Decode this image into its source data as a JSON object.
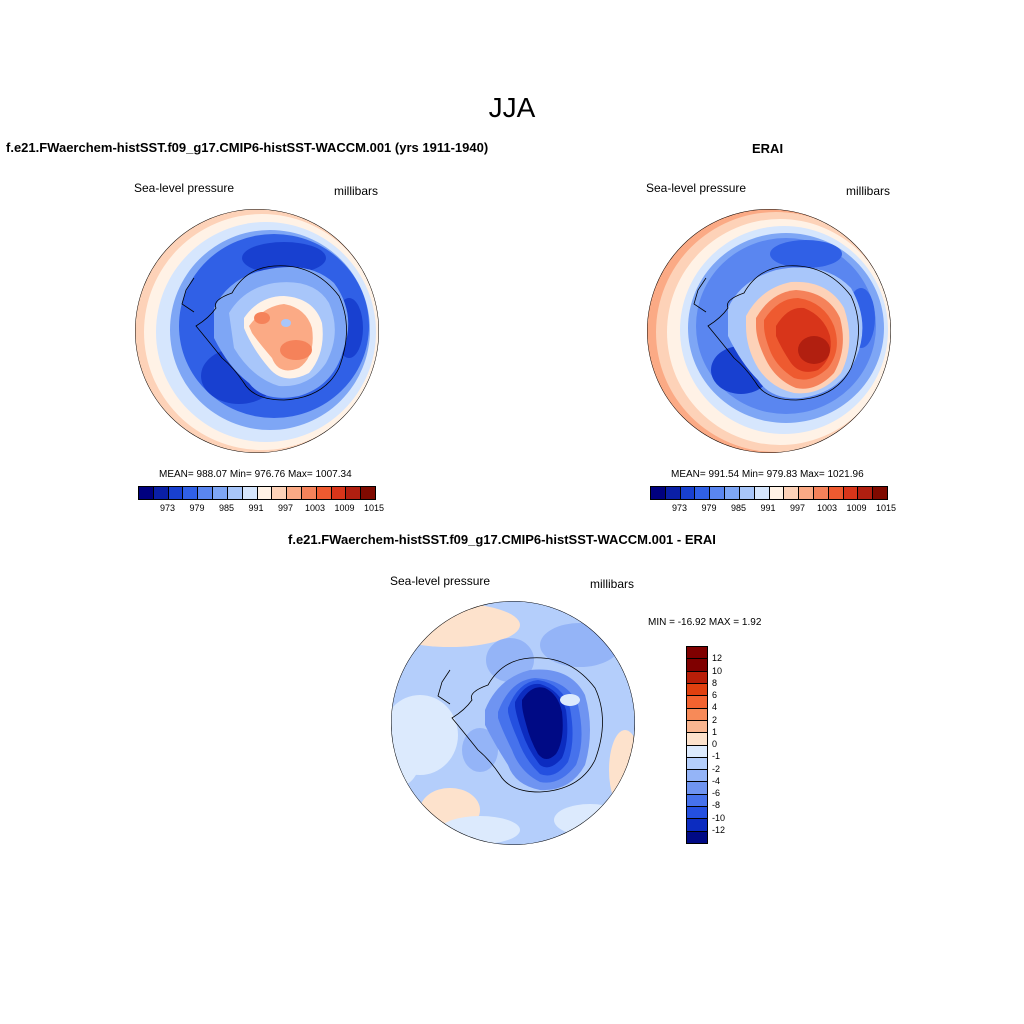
{
  "figure": {
    "season": "JJA",
    "colors": {
      "scale": [
        "#00007f",
        "#0a1fa6",
        "#1840d0",
        "#3060e6",
        "#5a86f0",
        "#7ea6f5",
        "#a8c6fa",
        "#d6e6fd",
        "#fff2e6",
        "#fdd2b8",
        "#fbaa85",
        "#f5825a",
        "#ee5a30",
        "#d8351a",
        "#b11f10",
        "#7f0a00"
      ]
    },
    "panels": [
      {
        "title": "f.e21.FWaerchem-histSST.f09_g17.CMIP6-histSST-WACCM.001 (yrs 1911-1940)",
        "variable": "Sea-level pressure",
        "units": "millibars",
        "stats": "MEAN= 988.07   Min= 976.76   Max= 1007.34",
        "colorbar_labels": [
          "973",
          "979",
          "985",
          "991",
          "997",
          "1003",
          "1009",
          "1015"
        ]
      },
      {
        "title": "ERAI",
        "variable": "Sea-level pressure",
        "units": "millibars",
        "stats": "MEAN= 991.54   Min= 979.83   Max= 1021.96",
        "colorbar_labels": [
          "973",
          "979",
          "985",
          "991",
          "997",
          "1003",
          "1009",
          "1015"
        ]
      },
      {
        "title": "f.e21.FWaerchem-histSST.f09_g17.CMIP6-histSST-WACCM.001 - ERAI",
        "variable": "Sea-level pressure",
        "units": "millibars",
        "stats": "MIN = -16.92 MAX =   1.92",
        "colorbar_labels": [
          "12",
          "10",
          "8",
          "6",
          "4",
          "2",
          "1",
          "0",
          "-1",
          "-2",
          "-4",
          "-6",
          "-8",
          "-10",
          "-12"
        ],
        "colorbar_colors": [
          "#7f0000",
          "#b81e08",
          "#e0400f",
          "#f36330",
          "#f78a58",
          "#fab690",
          "#fde2cc",
          "#dceafd",
          "#b4cefb",
          "#94b4f7",
          "#6f94f1",
          "#4672ec",
          "#2450e0",
          "#0c2cc0",
          "#000a85"
        ]
      }
    ]
  }
}
